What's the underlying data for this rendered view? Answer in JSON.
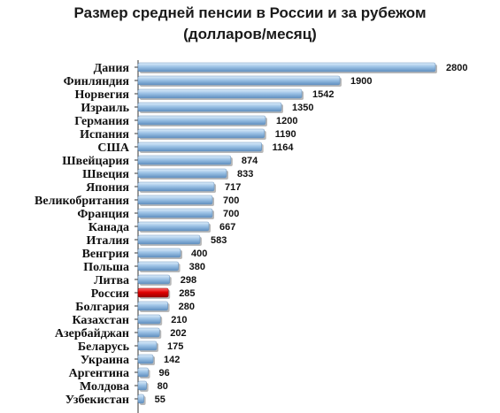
{
  "title": {
    "line1": "Размер средней пенсии в России и за рубежом",
    "line2": "(долларов/месяц)"
  },
  "colors": {
    "bar": "#9dc3e6",
    "bar_highlight": "#e00000",
    "axis": "#333333"
  },
  "chart_data": {
    "type": "bar",
    "orientation": "horizontal",
    "title": "Размер средней пенсии в России и за рубежом (долларов/месяц)",
    "categories": [
      "Дания",
      "Финляндия",
      "Норвегия",
      "Израиль",
      "Германия",
      "Испания",
      "США",
      "Швейцария",
      "Швеция",
      "Япония",
      "Великобритания",
      "Франция",
      "Канада",
      "Италия",
      "Венгрия",
      "Польша",
      "Литва",
      "Россия",
      "Болгария",
      "Казахстан",
      "Азербайджан",
      "Беларусь",
      "Украина",
      "Аргентина",
      "Молдова",
      "Узбекистан"
    ],
    "values": [
      2800,
      1900,
      1542,
      1350,
      1200,
      1190,
      1164,
      874,
      833,
      717,
      700,
      700,
      667,
      583,
      400,
      380,
      298,
      285,
      280,
      210,
      202,
      175,
      142,
      96,
      80,
      55
    ],
    "highlight": "Россия",
    "xlim": [
      0,
      2800
    ],
    "grid": false,
    "legend": "none"
  }
}
